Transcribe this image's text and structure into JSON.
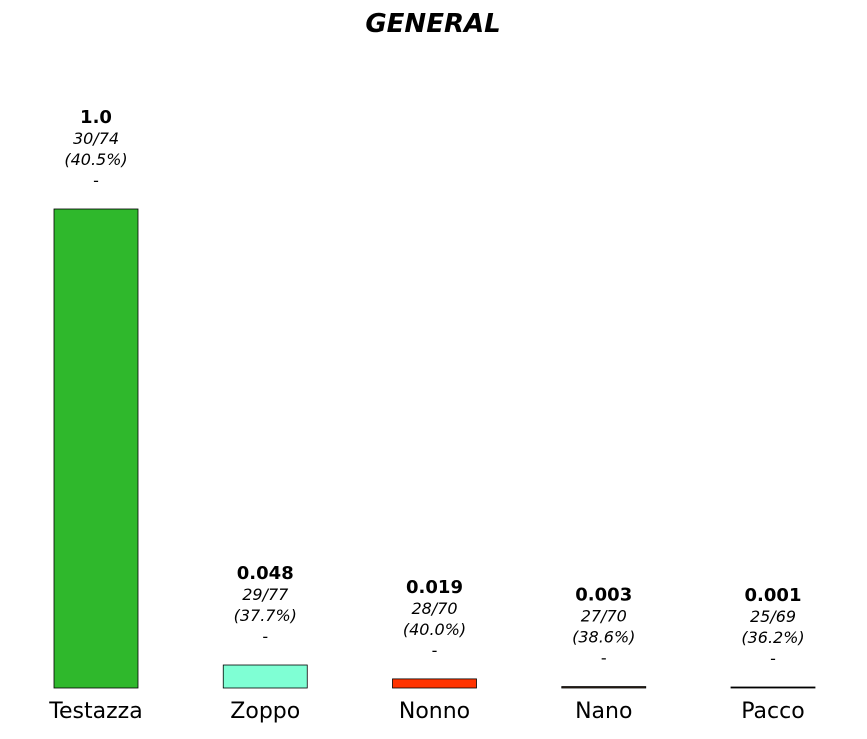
{
  "chart_data": {
    "type": "bar",
    "title": "GENERAL",
    "xlabel": "",
    "ylabel": "",
    "ylim": [
      0,
      1.0
    ],
    "grid": false,
    "legend": "none",
    "categories": [
      "Testazza",
      "Zoppo",
      "Nonno",
      "Nano",
      "Pacco"
    ],
    "values": [
      1.0,
      0.048,
      0.019,
      0.003,
      0.001
    ],
    "value_labels": [
      "1.0",
      "0.048",
      "0.019",
      "0.003",
      "0.001"
    ],
    "ratio_labels": [
      "30/74",
      "29/77",
      "28/70",
      "27/70",
      "25/69"
    ],
    "percent_labels": [
      "(40.5%)",
      "(37.7%)",
      "(40.0%)",
      "(38.6%)",
      "(36.2%)"
    ],
    "extra_labels": [
      "-",
      "-",
      "-",
      "-",
      "-"
    ],
    "colors": [
      "#2fb82c",
      "#7fffd4",
      "#ff3300",
      "#3a2a1a",
      "#000000"
    ]
  }
}
